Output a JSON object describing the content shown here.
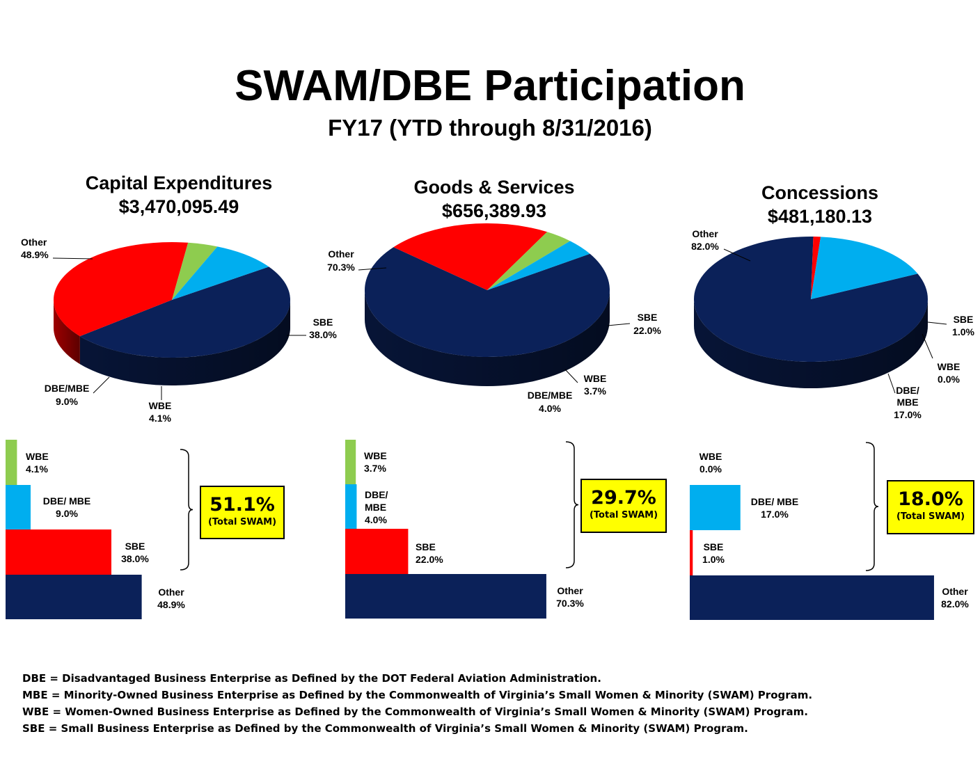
{
  "title": "SWAM/DBE Participation",
  "subtitle": "FY17 (YTD through 8/31/2016)",
  "colors": {
    "Other": "#0b2159",
    "SBE": "#ff0000",
    "WBE": "#8ecc4f",
    "DBE_MBE": "#00aeef",
    "swam_box": "#ffff00"
  },
  "charts": [
    {
      "title": "Capital Expenditures",
      "amount": "$3,470,095.49",
      "total_swam": "51.1%",
      "total_swam_note": "(Total SWAM)"
    },
    {
      "title": "Goods & Services",
      "amount": "$656,389.93",
      "total_swam": "29.7%",
      "total_swam_note": "(Total SWAM)"
    },
    {
      "title": "Concessions",
      "amount": "$481,180.13",
      "total_swam": "18.0%",
      "total_swam_note": "(Total SWAM)"
    }
  ],
  "chart_data": [
    {
      "type": "pie",
      "title": "Capital Expenditures",
      "subtitle": "$3,470,095.49",
      "slices": [
        {
          "name": "Other",
          "value": 48.9,
          "pie_label": [
            "Other",
            "48.9%"
          ],
          "bar_label": [
            "Other",
            "48.9%"
          ]
        },
        {
          "name": "SBE",
          "value": 38.0,
          "pie_label": [
            "SBE",
            "38.0%"
          ],
          "bar_label": [
            "SBE",
            "38.0%"
          ]
        },
        {
          "name": "WBE",
          "value": 4.1,
          "pie_label": [
            "WBE",
            "4.1%"
          ],
          "bar_label": [
            "WBE",
            "4.1%"
          ]
        },
        {
          "name": "DBE/MBE",
          "value": 9.0,
          "pie_label": [
            "DBE/MBE",
            "9.0%"
          ],
          "bar_label": [
            "DBE/ MBE",
            "9.0%"
          ]
        }
      ]
    },
    {
      "type": "pie",
      "title": "Goods & Services",
      "subtitle": "$656,389.93",
      "slices": [
        {
          "name": "Other",
          "value": 70.3,
          "pie_label": [
            "Other",
            "70.3%"
          ],
          "bar_label": [
            "Other",
            "70.3%"
          ]
        },
        {
          "name": "SBE",
          "value": 22.0,
          "pie_label": [
            "SBE",
            "22.0%"
          ],
          "bar_label": [
            "SBE",
            "22.0%"
          ]
        },
        {
          "name": "WBE",
          "value": 3.7,
          "pie_label": [
            "WBE",
            "3.7%"
          ],
          "bar_label": [
            "WBE",
            "3.7%"
          ]
        },
        {
          "name": "DBE/MBE",
          "value": 4.0,
          "pie_label": [
            "DBE/MBE",
            "4.0%"
          ],
          "bar_label": [
            "DBE/",
            "MBE",
            "4.0%"
          ]
        }
      ]
    },
    {
      "type": "pie",
      "title": "Concessions",
      "subtitle": "$481,180.13",
      "slices": [
        {
          "name": "Other",
          "value": 82.0,
          "pie_label": [
            "Other",
            "82.0%"
          ],
          "bar_label": [
            "Other",
            "82.0%"
          ]
        },
        {
          "name": "SBE",
          "value": 1.0,
          "pie_label": [
            "SBE",
            "1.0%"
          ],
          "bar_label": [
            "SBE",
            "1.0%"
          ]
        },
        {
          "name": "WBE",
          "value": 0.0,
          "pie_label": [
            "WBE",
            "0.0%"
          ],
          "bar_label": [
            "WBE",
            "0.0%"
          ]
        },
        {
          "name": "DBE/MBE",
          "value": 17.0,
          "pie_label": [
            "DBE/",
            "MBE",
            "17.0%"
          ],
          "bar_label": [
            "DBE/ MBE",
            "17.0%"
          ]
        }
      ]
    }
  ],
  "footnotes": [
    "DBE = Disadvantaged Business Enterprise as Defined by the DOT Federal Aviation Administration.",
    "MBE = Minority-Owned Business Enterprise as Defined by the Commonwealth of Virginia’s Small Women & Minority (SWAM) Program.",
    "WBE = Women-Owned Business Enterprise as Defined by the Commonwealth of Virginia’s Small Women & Minority (SWAM) Program.",
    "SBE = Small Business Enterprise as Defined by the Commonwealth of Virginia’s Small Women & Minority (SWAM) Program."
  ]
}
